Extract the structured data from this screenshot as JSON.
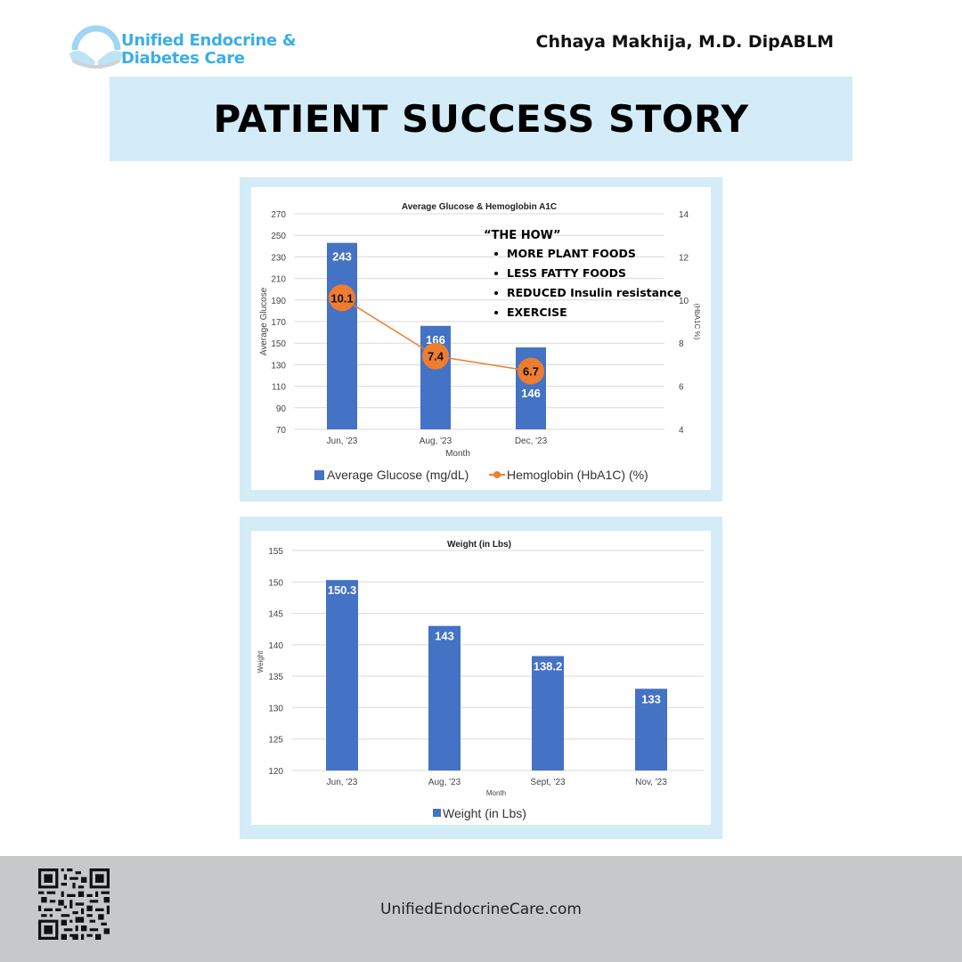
{
  "header": {
    "logo_line1": "Unified Endocrine &",
    "logo_line2": "Diabetes Care",
    "doctor": "Chhaya Makhija, M.D. DipABLM",
    "banner_title": "PATIENT SUCCESS STORY"
  },
  "colors": {
    "bar": "#4472c4",
    "line": "#ed7d31",
    "panel": "#d3ecf8",
    "logo": "#3aaee8",
    "footer": "#c7c8ca"
  },
  "annotation": {
    "heading": "“THE HOW”",
    "items": [
      "MORE PLANT FOODS",
      "LESS FATTY FOODS",
      "REDUCED Insulin resistance",
      "EXERCISE"
    ]
  },
  "chart_data": [
    {
      "type": "bar+line",
      "title": "Average Glucose & Hemoglobin A1C",
      "xlabel": "Month",
      "ylabel": "Average Glucose",
      "y2label": "(HbA1C %)",
      "categories": [
        "Jun, '23",
        "Aug, '23",
        "Dec, '23"
      ],
      "ylim": [
        70,
        270
      ],
      "yticks": [
        270,
        250,
        230,
        210,
        190,
        170,
        150,
        130,
        110,
        90,
        70
      ],
      "y2lim": [
        4,
        14
      ],
      "y2ticks": [
        14,
        12,
        10,
        8,
        6,
        4
      ],
      "series": [
        {
          "name": "Average Glucose (mg/dL)",
          "kind": "bar",
          "axis": "left",
          "values": [
            243,
            166,
            146
          ],
          "labels": [
            "243",
            "166",
            "146"
          ]
        },
        {
          "name": "Hemoglobin (HbA1C) (%)",
          "kind": "line",
          "axis": "right",
          "values": [
            10.1,
            7.4,
            6.7
          ],
          "labels": [
            "10.1",
            "7.4",
            "6.7"
          ]
        }
      ],
      "grid": true,
      "legend": "bottom"
    },
    {
      "type": "bar",
      "title": "Weight (in Lbs)",
      "xlabel": "Month",
      "ylabel": "Weight",
      "categories": [
        "Jun, '23",
        "Aug, '23",
        "Sept, '23",
        "Nov, '23"
      ],
      "ylim": [
        120,
        155
      ],
      "yticks": [
        155,
        150,
        145,
        140,
        135,
        130,
        125,
        120
      ],
      "series": [
        {
          "name": "Weight (in Lbs)",
          "values": [
            150.3,
            143,
            138.2,
            133
          ],
          "labels": [
            "150.3",
            "143",
            "138.2",
            "133"
          ]
        }
      ],
      "grid": true,
      "legend": "bottom"
    }
  ],
  "footer": {
    "website": "UnifiedEndocrineCare.com"
  }
}
